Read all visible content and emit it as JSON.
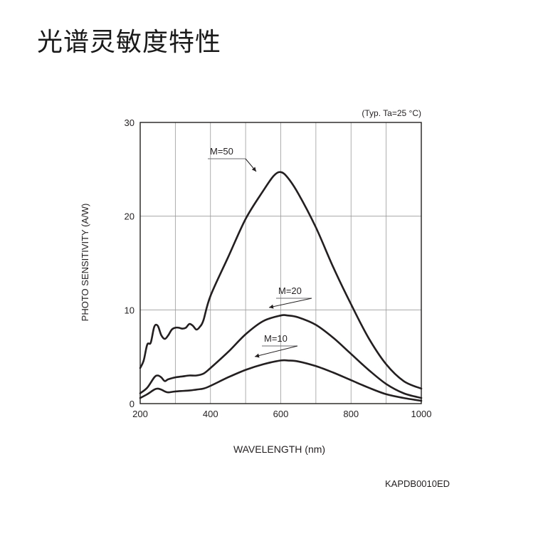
{
  "title": "光谱灵敏度特性",
  "figure_code": "KAPDB0010ED",
  "chart_data": {
    "type": "line",
    "condition": "(Typ. Ta=25 °C)",
    "xlabel": "WAVELENGTH (nm)",
    "ylabel": "PHOTO SENSITIVITY (A/W)",
    "xlim": [
      200,
      1000
    ],
    "ylim": [
      0,
      30
    ],
    "xticks": [
      200,
      400,
      600,
      800,
      1000
    ],
    "yticks": [
      0,
      10,
      20,
      30
    ],
    "grid": true,
    "series": [
      {
        "name": "M=50",
        "x": [
          200,
          210,
          220,
          230,
          240,
          250,
          260,
          270,
          280,
          290,
          300,
          310,
          320,
          330,
          340,
          350,
          360,
          370,
          380,
          400,
          450,
          500,
          550,
          580,
          600,
          620,
          650,
          700,
          750,
          800,
          850,
          900,
          950,
          1000
        ],
        "y": [
          3.8,
          4.6,
          6.3,
          6.5,
          8.2,
          8.3,
          7.3,
          6.9,
          7.3,
          7.9,
          8.1,
          8.1,
          8.0,
          8.1,
          8.5,
          8.3,
          7.9,
          8.2,
          8.9,
          11.5,
          15.6,
          19.7,
          22.7,
          24.3,
          24.7,
          24.1,
          22.4,
          18.8,
          14.5,
          10.6,
          7.0,
          4.2,
          2.4,
          1.6
        ]
      },
      {
        "name": "M=20",
        "x": [
          200,
          220,
          240,
          250,
          260,
          270,
          280,
          300,
          320,
          340,
          360,
          380,
          400,
          450,
          500,
          550,
          600,
          620,
          650,
          700,
          750,
          800,
          850,
          900,
          950,
          1000
        ],
        "y": [
          1.1,
          1.7,
          2.8,
          3.0,
          2.8,
          2.4,
          2.6,
          2.8,
          2.9,
          3.0,
          3.0,
          3.2,
          3.8,
          5.5,
          7.4,
          8.8,
          9.4,
          9.4,
          9.2,
          8.4,
          7.0,
          5.3,
          3.6,
          2.1,
          1.1,
          0.6
        ]
      },
      {
        "name": "M=10",
        "x": [
          200,
          220,
          240,
          250,
          260,
          270,
          280,
          300,
          340,
          360,
          380,
          400,
          450,
          500,
          550,
          600,
          620,
          650,
          700,
          750,
          800,
          850,
          900,
          950,
          1000
        ],
        "y": [
          0.6,
          1.0,
          1.5,
          1.6,
          1.5,
          1.3,
          1.2,
          1.3,
          1.4,
          1.5,
          1.6,
          1.9,
          2.8,
          3.6,
          4.2,
          4.6,
          4.6,
          4.5,
          4.0,
          3.3,
          2.5,
          1.7,
          1.0,
          0.6,
          0.3
        ]
      }
    ]
  }
}
